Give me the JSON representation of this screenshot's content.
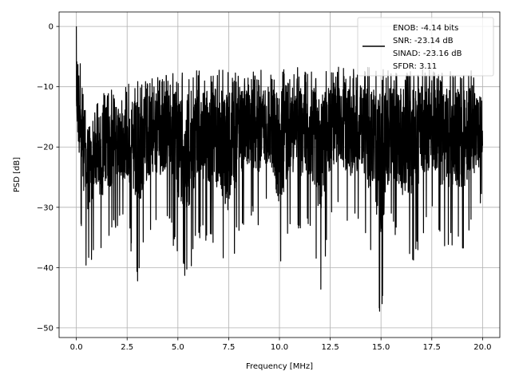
{
  "chart_data": {
    "type": "line",
    "title": "",
    "xlabel": "Frequency [MHz]",
    "ylabel": "PSD [dB]",
    "xlim": [
      -0.85,
      20.85
    ],
    "ylim": [
      -51.6,
      2.4
    ],
    "xticks": [
      0.0,
      2.5,
      5.0,
      7.5,
      10.0,
      12.5,
      15.0,
      17.5,
      20.0
    ],
    "xtick_labels": [
      "0.0",
      "2.5",
      "5.0",
      "7.5",
      "10.0",
      "12.5",
      "15.0",
      "17.5",
      "20.0"
    ],
    "yticks": [
      0,
      -10,
      -20,
      -30,
      -40,
      -50
    ],
    "ytick_labels": [
      "0",
      "−10",
      "−20",
      "−30",
      "−40",
      "−50"
    ],
    "grid": true,
    "legend_position": "top-right",
    "legend_entries": [
      "ENOB: -4.14 bits",
      "SNR: -23.14 dB",
      "SINAD: -23.16 dB",
      "SFDR: 3.11"
    ],
    "series": [
      {
        "color": "#000000",
        "envelope": {
          "x": [
            0.0,
            0.5,
            1.0,
            1.5,
            2.0,
            2.5,
            3.0,
            3.5,
            4.0,
            4.5,
            5.0,
            5.5,
            6.0,
            6.5,
            7.0,
            7.5,
            8.0,
            8.5,
            9.0,
            9.5,
            10.0,
            10.5,
            11.0,
            11.5,
            12.0,
            12.5,
            13.0,
            13.5,
            14.0,
            14.5,
            15.0,
            15.5,
            16.0,
            16.5,
            17.0,
            17.5,
            18.0,
            18.5,
            19.0,
            19.5,
            20.0
          ],
          "upper": [
            0.0,
            -12.5,
            -12.5,
            -10.5,
            -10.0,
            -9.5,
            -9.0,
            -8.5,
            -8.0,
            -8.0,
            -7.5,
            -7.5,
            -7.0,
            -7.5,
            -7.0,
            -7.5,
            -7.5,
            -7.0,
            -7.0,
            -7.5,
            -7.0,
            -6.0,
            -7.0,
            -7.5,
            -6.5,
            -7.0,
            -6.5,
            -7.0,
            -7.0,
            -6.5,
            -7.0,
            -7.5,
            -7.0,
            -7.5,
            -6.5,
            -7.0,
            -7.5,
            -7.0,
            -7.5,
            -7.0,
            -12.5
          ],
          "lower": [
            -27.0,
            -41.0,
            -37.0,
            -37.0,
            -34.0,
            -34.0,
            -42.5,
            -34.0,
            -35.0,
            -32.0,
            -40.0,
            -42.5,
            -35.5,
            -36.0,
            -38.0,
            -43.5,
            -34.0,
            -32.0,
            -34.0,
            -30.0,
            -43.0,
            -33.0,
            -35.0,
            -34.0,
            -45.0,
            -33.0,
            -31.0,
            -35.0,
            -32.0,
            -40.0,
            -49.0,
            -33.0,
            -39.0,
            -40.0,
            -36.0,
            -32.0,
            -38.0,
            -37.0,
            -38.0,
            -34.0,
            -30.0
          ]
        }
      }
    ]
  }
}
